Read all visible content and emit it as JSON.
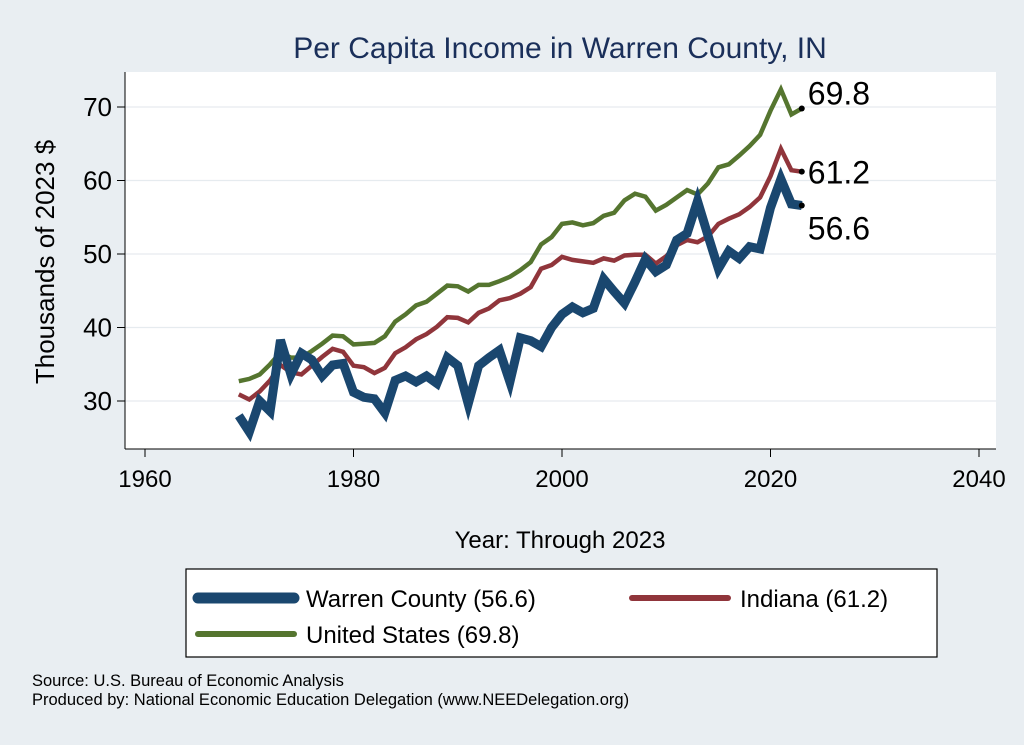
{
  "chart_data": {
    "type": "line",
    "title": "Per Capita Income in Warren County, IN",
    "xlabel": "Year: Through 2023",
    "ylabel": "Thousands of 2023 $",
    "xlim": [
      1960,
      2040
    ],
    "ylim": [
      25,
      73
    ],
    "xticks": [
      1960,
      1980,
      2000,
      2020,
      2040
    ],
    "yticks": [
      30,
      40,
      50,
      60,
      70
    ],
    "grid": true,
    "legend_position": "bottom",
    "x": [
      1969,
      1970,
      1971,
      1972,
      1973,
      1974,
      1975,
      1976,
      1977,
      1978,
      1979,
      1980,
      1981,
      1982,
      1983,
      1984,
      1985,
      1986,
      1987,
      1988,
      1989,
      1990,
      1991,
      1992,
      1993,
      1994,
      1995,
      1996,
      1997,
      1998,
      1999,
      2000,
      2001,
      2002,
      2003,
      2004,
      2005,
      2006,
      2007,
      2008,
      2009,
      2010,
      2011,
      2012,
      2013,
      2014,
      2015,
      2016,
      2017,
      2018,
      2019,
      2020,
      2021,
      2022,
      2023
    ],
    "series": [
      {
        "name": "Warren County",
        "legend_label": "Warren County (56.6)",
        "color": "#1a476f",
        "end_label": "56.6",
        "values": [
          28.0,
          25.8,
          30.0,
          28.6,
          38.3,
          33.6,
          36.5,
          35.6,
          33.4,
          34.9,
          35.1,
          31.2,
          30.5,
          30.3,
          28.4,
          32.8,
          33.4,
          32.6,
          33.4,
          32.4,
          35.9,
          34.8,
          29.6,
          34.8,
          35.9,
          36.9,
          32.6,
          38.6,
          38.2,
          37.4,
          40.0,
          41.8,
          42.8,
          42.0,
          42.6,
          46.6,
          44.9,
          43.3,
          46.2,
          49.3,
          47.6,
          48.5,
          51.9,
          52.8,
          57.2,
          52.5,
          48.0,
          50.4,
          49.4,
          51.0,
          50.7,
          56.3,
          60.2,
          56.8,
          56.6
        ]
      },
      {
        "name": "Indiana",
        "legend_label": "Indiana (61.2)",
        "color": "#90353b",
        "end_label": "61.2",
        "values": [
          30.9,
          30.2,
          31.3,
          32.8,
          34.9,
          33.9,
          33.6,
          34.8,
          36.0,
          37.1,
          36.7,
          34.8,
          34.6,
          33.8,
          34.5,
          36.5,
          37.3,
          38.4,
          39.1,
          40.1,
          41.4,
          41.3,
          40.7,
          42.0,
          42.6,
          43.7,
          44.0,
          44.6,
          45.5,
          48.0,
          48.5,
          49.6,
          49.2,
          49.0,
          48.8,
          49.4,
          49.1,
          49.8,
          49.9,
          49.9,
          48.7,
          49.7,
          51.2,
          51.9,
          51.6,
          52.4,
          54.1,
          54.8,
          55.4,
          56.4,
          57.7,
          60.6,
          64.3,
          61.4,
          61.2
        ]
      },
      {
        "name": "United States",
        "legend_label": "United States (69.8)",
        "color": "#55752f",
        "end_label": "69.8",
        "values": [
          32.7,
          33.0,
          33.6,
          35.0,
          36.6,
          35.9,
          35.9,
          36.8,
          37.8,
          38.9,
          38.8,
          37.7,
          37.8,
          37.9,
          38.8,
          40.8,
          41.8,
          43.0,
          43.5,
          44.6,
          45.7,
          45.6,
          44.9,
          45.8,
          45.8,
          46.3,
          46.9,
          47.8,
          48.9,
          51.3,
          52.3,
          54.1,
          54.3,
          53.9,
          54.2,
          55.2,
          55.6,
          57.3,
          58.2,
          57.8,
          55.9,
          56.7,
          57.7,
          58.7,
          58.1,
          59.6,
          61.8,
          62.2,
          63.4,
          64.7,
          66.2,
          69.5,
          72.4,
          69.0,
          69.8
        ]
      }
    ]
  },
  "source_line": "Source: U.S. Bureau of Economic Analysis",
  "produced_line": "Produced by: National Economic Education Delegation (www.NEEDelegation.org)"
}
